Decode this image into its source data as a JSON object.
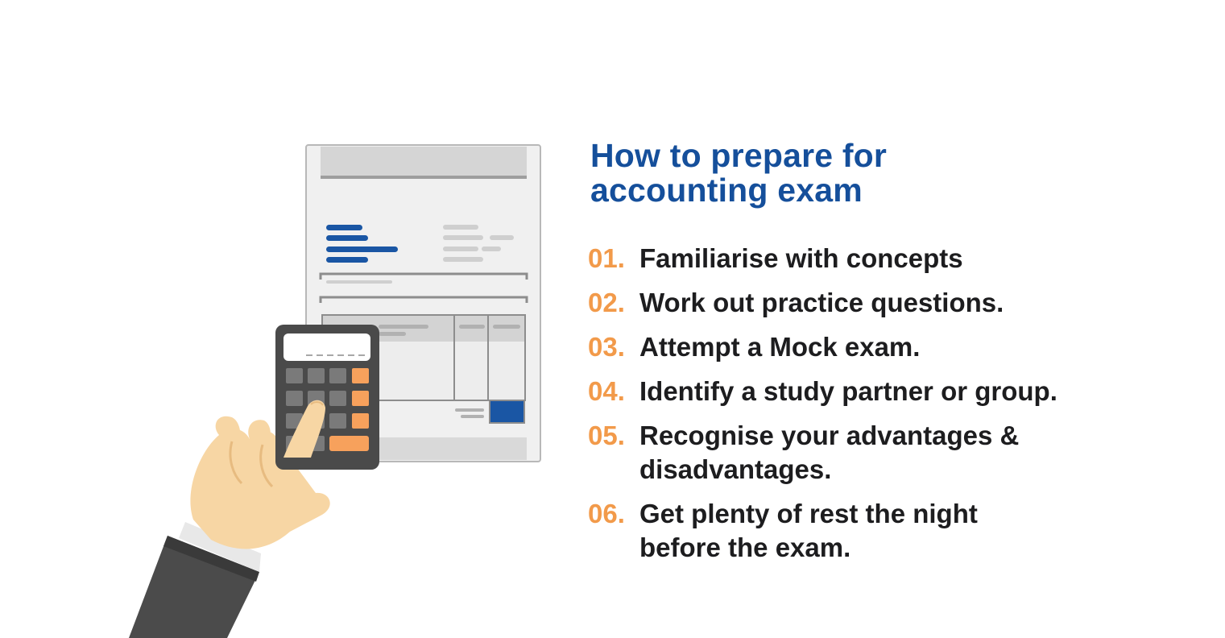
{
  "heading": {
    "line1": "How to prepare for",
    "line2": "accounting exam"
  },
  "colors": {
    "heading": "#154f9b",
    "number": "#f29a4a",
    "text": "#1d1d1f",
    "accent_blue": "#1a56a4",
    "key_orange": "#f7a15c",
    "calculator_body": "#4a4a4a",
    "sleeve": "#4b4b4b",
    "skin": "#f7d6a4"
  },
  "steps": [
    {
      "num": "01.",
      "line1": "Familiarise with concepts",
      "line2": ""
    },
    {
      "num": "02.",
      "line1": "Work out practice questions.",
      "line2": ""
    },
    {
      "num": "03.",
      "line1": "Attempt a Mock exam.",
      "line2": ""
    },
    {
      "num": "04.",
      "line1": "Identify a study partner or group.",
      "line2": ""
    },
    {
      "num": "05.",
      "line1": "Recognise your advantages &",
      "line2": "disadvantages."
    },
    {
      "num": "06.",
      "line1": "Get plenty of rest the night",
      "line2": "before the exam."
    }
  ]
}
